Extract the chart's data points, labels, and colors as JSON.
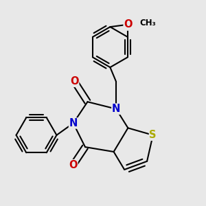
{
  "background_color": "#e8e8e8",
  "bond_color": "#000000",
  "bond_width": 1.5,
  "atom_colors": {
    "N": "#0000cc",
    "O": "#cc0000",
    "S": "#aaaa00",
    "F": "#cc00cc",
    "C": "#000000"
  },
  "font_size": 10.5
}
